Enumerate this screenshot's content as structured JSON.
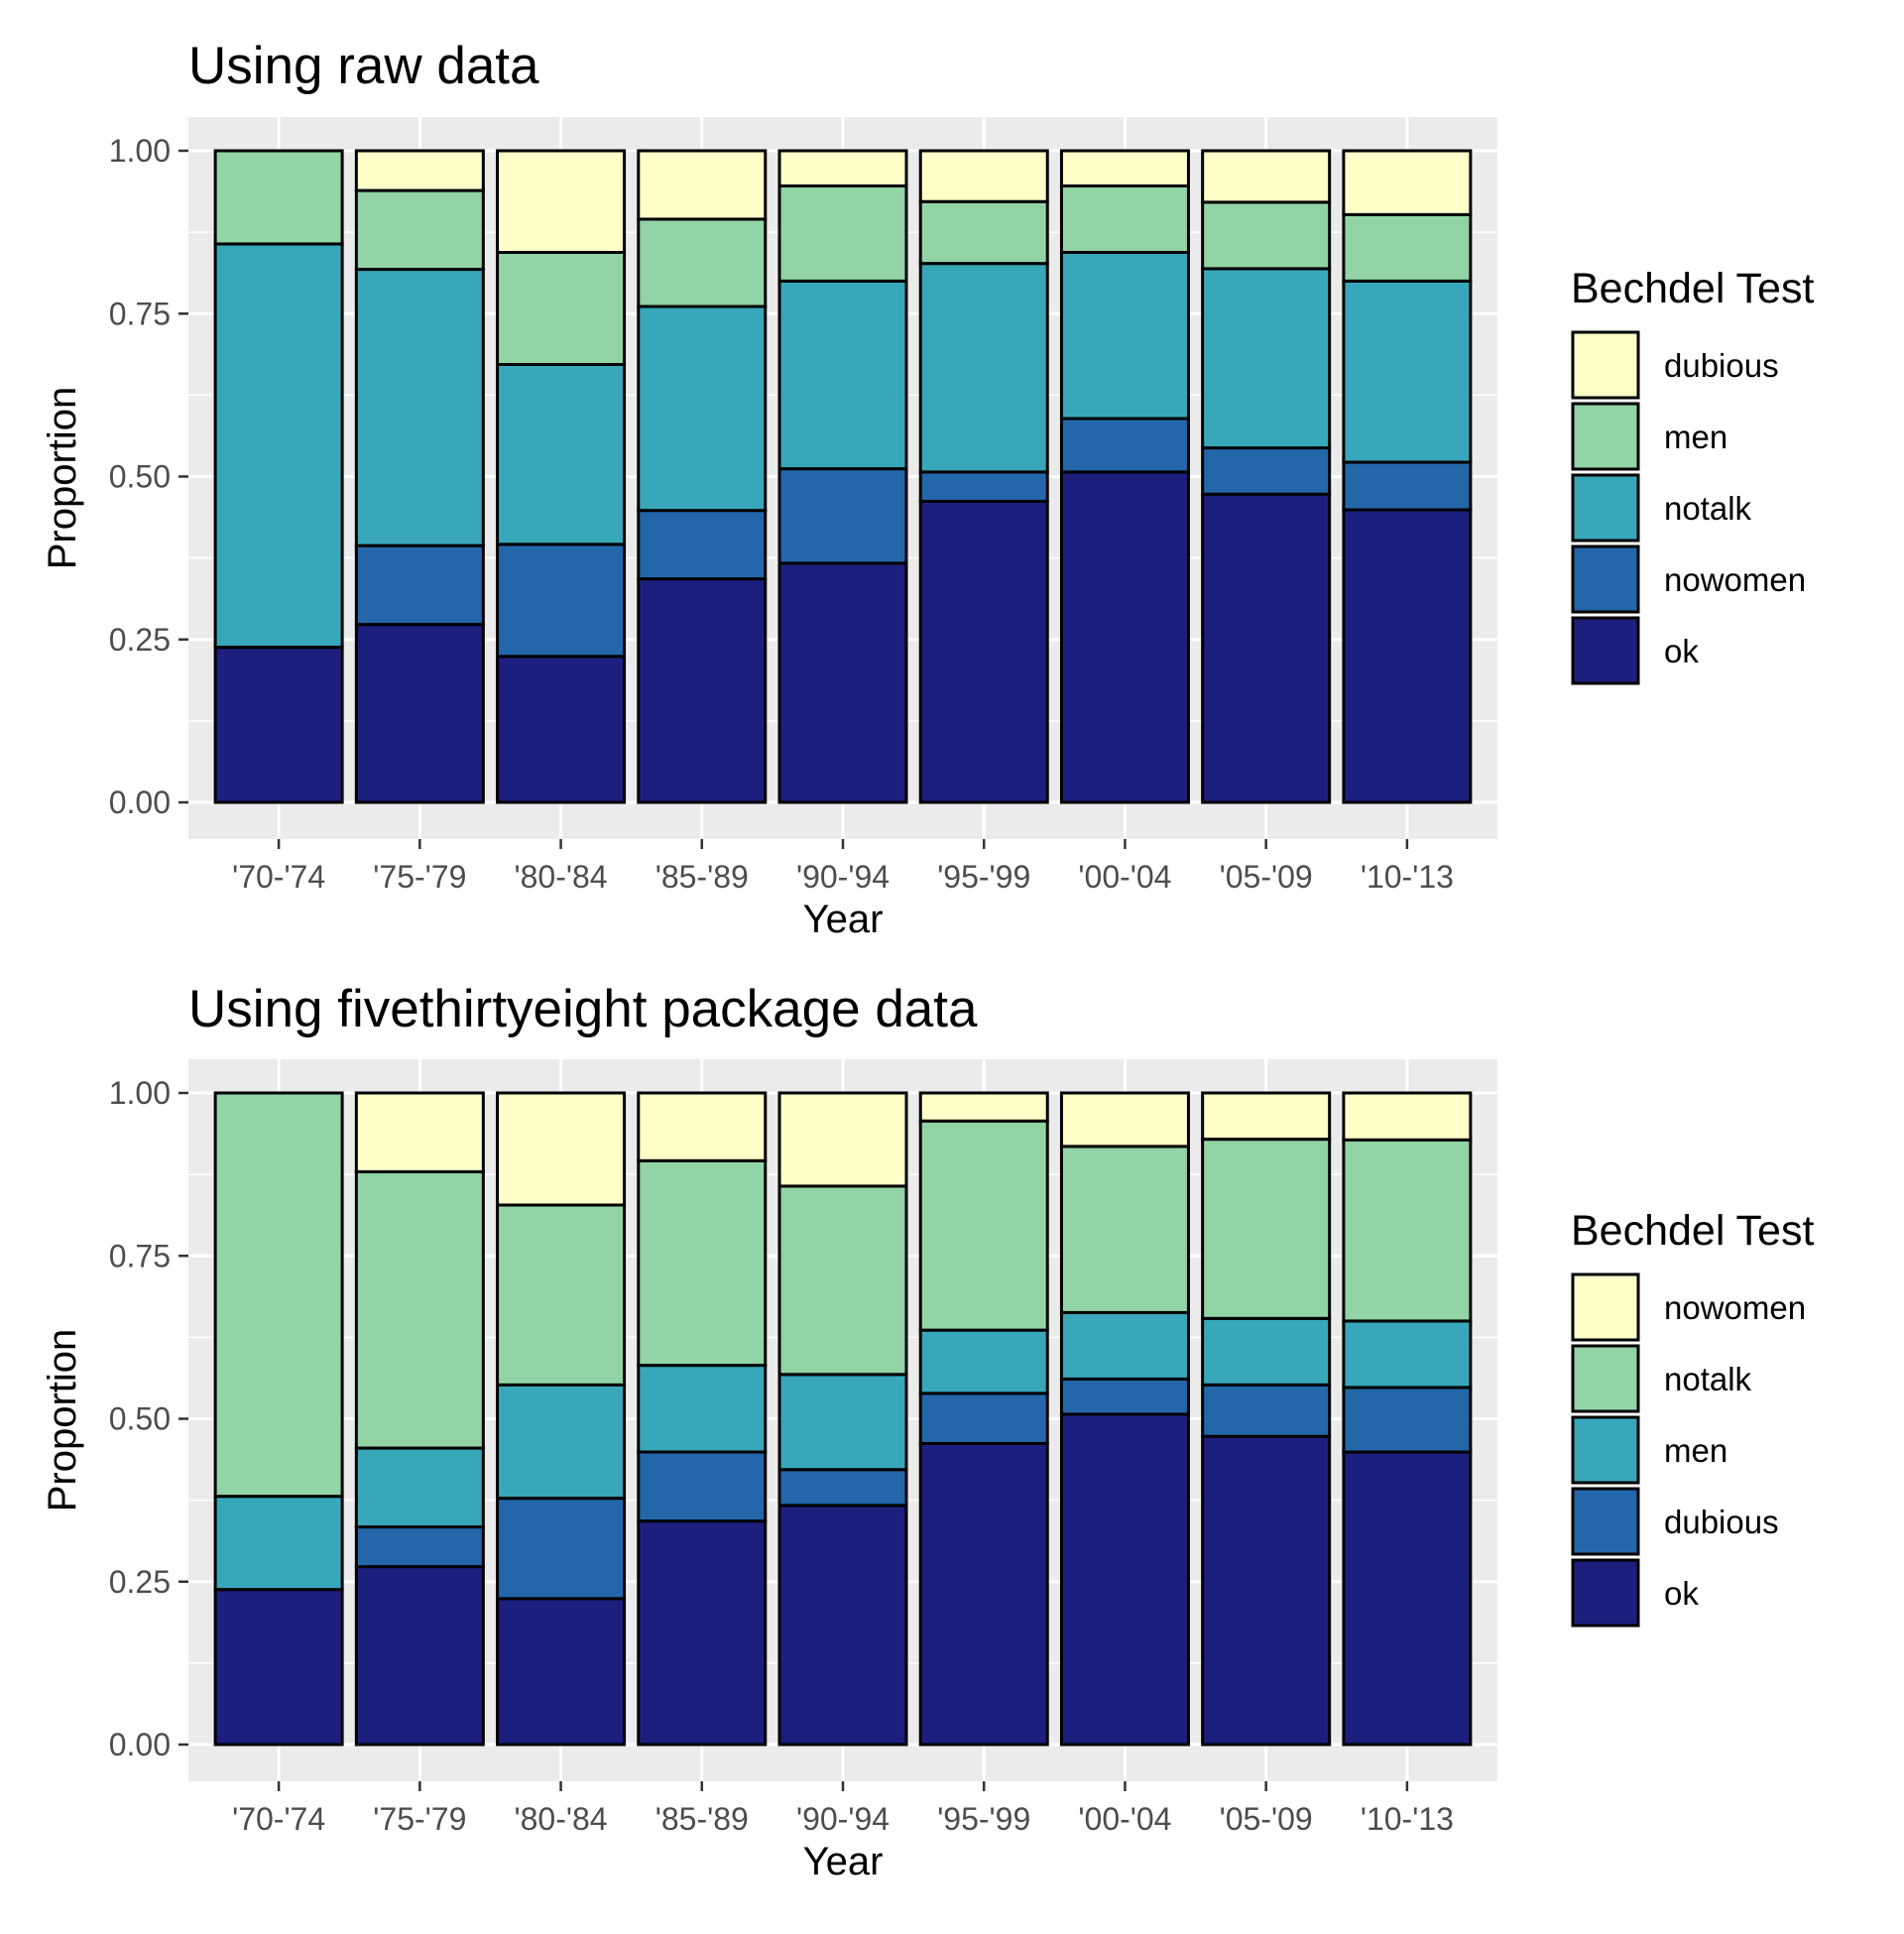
{
  "chart_data": [
    {
      "type": "bar",
      "stacked": true,
      "title": "Using raw data",
      "xlabel": "Year",
      "ylabel": "Proportion",
      "ylim": [
        0,
        1
      ],
      "yticks": [
        "0.00",
        "0.25",
        "0.50",
        "0.75",
        "1.00"
      ],
      "ytick_values": [
        0,
        0.25,
        0.5,
        0.75,
        1
      ],
      "categories": [
        "'70-'74",
        "'75-'79",
        "'80-'84",
        "'85-'89",
        "'90-'94",
        "'95-'99",
        "'00-'04",
        "'05-'09",
        "'10-'13"
      ],
      "legend_title": "Bechdel Test",
      "legend_placement": "right",
      "grid": true,
      "series": [
        {
          "name": "ok",
          "color": "#1d1f7e",
          "values": [
            0.238,
            0.273,
            0.224,
            0.343,
            0.367,
            0.462,
            0.507,
            0.473,
            0.449
          ]
        },
        {
          "name": "nowomen",
          "color": "#2367aa",
          "values": [
            0.0,
            0.121,
            0.172,
            0.105,
            0.145,
            0.045,
            0.082,
            0.071,
            0.073
          ]
        },
        {
          "name": "notalk",
          "color": "#38a7ba",
          "values": [
            0.619,
            0.424,
            0.276,
            0.313,
            0.288,
            0.32,
            0.255,
            0.275,
            0.278
          ]
        },
        {
          "name": "men",
          "color": "#92d4a5",
          "values": [
            0.143,
            0.121,
            0.172,
            0.134,
            0.146,
            0.095,
            0.102,
            0.102,
            0.102
          ]
        },
        {
          "name": "dubious",
          "color": "#ffffc8",
          "values": [
            0.0,
            0.061,
            0.156,
            0.105,
            0.054,
            0.078,
            0.054,
            0.079,
            0.098
          ]
        }
      ]
    },
    {
      "type": "bar",
      "stacked": true,
      "title": "Using fivethirtyeight package data",
      "xlabel": "Year",
      "ylabel": "Proportion",
      "ylim": [
        0,
        1
      ],
      "yticks": [
        "0.00",
        "0.25",
        "0.50",
        "0.75",
        "1.00"
      ],
      "ytick_values": [
        0,
        0.25,
        0.5,
        0.75,
        1
      ],
      "categories": [
        "'70-'74",
        "'75-'79",
        "'80-'84",
        "'85-'89",
        "'90-'94",
        "'95-'99",
        "'00-'04",
        "'05-'09",
        "'10-'13"
      ],
      "legend_title": "Bechdel Test",
      "legend_placement": "right",
      "grid": true,
      "series": [
        {
          "name": "ok",
          "color": "#1d1f7e",
          "values": [
            0.238,
            0.273,
            0.224,
            0.343,
            0.367,
            0.462,
            0.507,
            0.473,
            0.449
          ]
        },
        {
          "name": "dubious",
          "color": "#2367aa",
          "values": [
            0.0,
            0.061,
            0.154,
            0.106,
            0.055,
            0.077,
            0.054,
            0.079,
            0.099
          ]
        },
        {
          "name": "men",
          "color": "#38a7ba",
          "values": [
            0.143,
            0.121,
            0.174,
            0.133,
            0.146,
            0.097,
            0.102,
            0.102,
            0.102
          ]
        },
        {
          "name": "notalk",
          "color": "#92d4a5",
          "values": [
            0.619,
            0.424,
            0.276,
            0.314,
            0.289,
            0.321,
            0.255,
            0.275,
            0.278
          ]
        },
        {
          "name": "nowomen",
          "color": "#ffffc8",
          "values": [
            0.0,
            0.121,
            0.172,
            0.104,
            0.143,
            0.043,
            0.082,
            0.071,
            0.072
          ]
        }
      ]
    }
  ]
}
